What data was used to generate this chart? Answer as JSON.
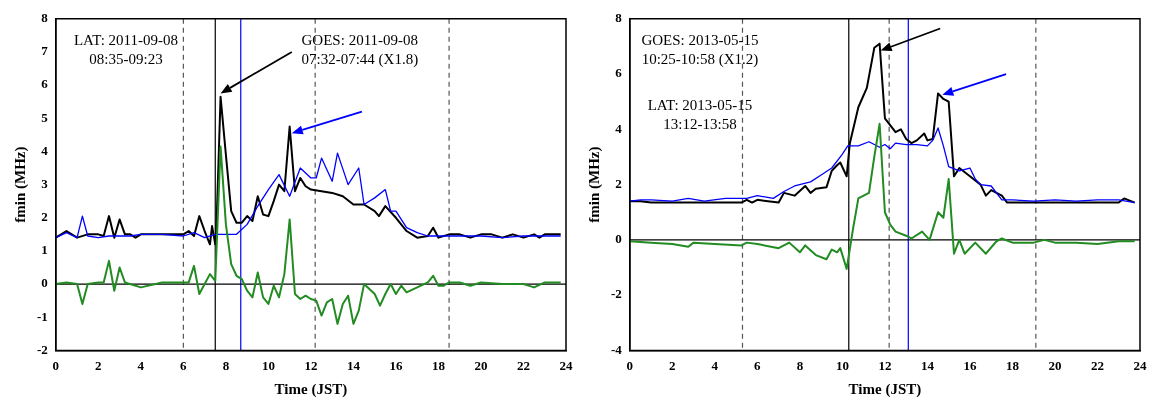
{
  "chart_data": [
    {
      "type": "line",
      "xlabel": "Time (JST)",
      "ylabel": "fmin (MHz)",
      "xlim": [
        0,
        24
      ],
      "xticks": [
        0,
        2,
        4,
        6,
        8,
        10,
        12,
        14,
        16,
        18,
        20,
        22,
        24
      ],
      "ylim": [
        -2,
        8
      ],
      "yticks": [
        -2,
        -1,
        0,
        1,
        2,
        3,
        4,
        5,
        6,
        7,
        8
      ],
      "grid": false,
      "legend": false,
      "marker": "none",
      "line_style": "solid",
      "annotations": [
        "LAT: 2011-09-08\n08:35-09:23",
        "GOES: 2011-09-08\n07:32-07:44 (X1.8)"
      ],
      "ref_lines": [
        {
          "axis": "x",
          "value": 6.0,
          "color": "#555555",
          "line_style": "dashed"
        },
        {
          "axis": "x",
          "value": 12.2,
          "color": "#555555",
          "line_style": "dashed"
        },
        {
          "axis": "x",
          "value": 18.5,
          "color": "#555555",
          "line_style": "dashed"
        },
        {
          "axis": "x",
          "value": 7.5,
          "color": "#000000",
          "line_style": "solid"
        },
        {
          "axis": "x",
          "value": 8.7,
          "color": "#0000ff",
          "line_style": "solid"
        },
        {
          "axis": "y",
          "value": 0,
          "color": "#000000",
          "line_style": "solid"
        }
      ],
      "series": [
        {
          "color": "#000000",
          "x": [
            0,
            0.5,
            1,
            1.5,
            2,
            2.25,
            2.5,
            2.75,
            3,
            3.25,
            3.5,
            3.75,
            4,
            5,
            6,
            6.25,
            6.5,
            6.75,
            7,
            7.25,
            7.35,
            7.5,
            7.55,
            7.75,
            8,
            8.25,
            8.5,
            8.75,
            9,
            9.25,
            9.5,
            9.75,
            10,
            10.25,
            10.5,
            10.75,
            11,
            11.25,
            11.5,
            11.75,
            12,
            12.5,
            13,
            13.5,
            14,
            14.5,
            15,
            15.2,
            15.5,
            16,
            16.5,
            17,
            17.5,
            17.75,
            18,
            18.5,
            19,
            19.5,
            20,
            20.5,
            21,
            21.5,
            22,
            22.5,
            22.75,
            23,
            23.75
          ],
          "values": [
            1.4,
            1.6,
            1.4,
            1.5,
            1.5,
            1.45,
            2.05,
            1.4,
            1.95,
            1.5,
            1.5,
            1.4,
            1.5,
            1.5,
            1.5,
            1.6,
            1.45,
            2.05,
            1.6,
            1.2,
            1.75,
            1.2,
            1.6,
            5.65,
            3.9,
            2.2,
            1.85,
            1.85,
            2.05,
            1.9,
            2.65,
            2.1,
            2.05,
            2.5,
            3.0,
            2.8,
            4.75,
            2.8,
            3.2,
            2.95,
            2.85,
            2.8,
            2.75,
            2.65,
            2.4,
            2.4,
            2.2,
            2.05,
            2.35,
            2.0,
            1.6,
            1.4,
            1.45,
            1.7,
            1.4,
            1.5,
            1.5,
            1.4,
            1.5,
            1.5,
            1.4,
            1.5,
            1.4,
            1.5,
            1.4,
            1.5,
            1.5
          ]
        },
        {
          "color": "#0000ff",
          "x": [
            0,
            0.5,
            1,
            1.25,
            1.5,
            2,
            2.5,
            3,
            3.5,
            4,
            5,
            6,
            6.5,
            7,
            7.5,
            8.5,
            9,
            9.5,
            10,
            10.5,
            11,
            11.5,
            12,
            12.25,
            12.5,
            13,
            13.25,
            13.75,
            14.25,
            14.5,
            15,
            15.5,
            15.75,
            16,
            16.5,
            17,
            17.5,
            18,
            19,
            20,
            21,
            22,
            23,
            23.75
          ],
          "values": [
            1.4,
            1.55,
            1.4,
            2.05,
            1.45,
            1.4,
            1.45,
            1.45,
            1.45,
            1.5,
            1.5,
            1.45,
            1.55,
            1.4,
            1.5,
            1.5,
            1.8,
            2.35,
            2.85,
            3.3,
            2.65,
            3.5,
            3.2,
            3.2,
            3.8,
            3.1,
            3.95,
            3.0,
            3.5,
            2.4,
            2.6,
            2.85,
            2.2,
            2.2,
            1.7,
            1.55,
            1.45,
            1.45,
            1.45,
            1.45,
            1.4,
            1.45,
            1.45,
            1.45
          ]
        },
        {
          "color": "#228b22",
          "x": [
            0,
            0.5,
            1,
            1.25,
            1.5,
            2,
            2.25,
            2.5,
            2.75,
            3,
            3.25,
            4,
            5,
            6,
            6.25,
            6.5,
            6.75,
            7,
            7.25,
            7.5,
            7.75,
            8,
            8.25,
            8.5,
            8.75,
            9,
            9.25,
            9.5,
            9.75,
            10,
            10.25,
            10.5,
            10.75,
            11,
            11.25,
            11.5,
            11.75,
            12,
            12.25,
            12.5,
            12.75,
            13,
            13.25,
            13.5,
            13.75,
            14,
            14.25,
            14.5,
            15,
            15.25,
            15.5,
            15.75,
            16,
            16.25,
            16.5,
            17,
            17.5,
            17.75,
            18,
            18.25,
            18.5,
            19,
            19.5,
            20,
            21,
            22,
            22.5,
            23,
            23.75
          ],
          "values": [
            0,
            0.05,
            0,
            -0.6,
            0,
            0.05,
            0.05,
            0.7,
            -0.2,
            0.5,
            0.05,
            -0.1,
            0.05,
            0.05,
            0.05,
            0.55,
            -0.3,
            0,
            0.3,
            0.1,
            4.15,
            1.8,
            0.6,
            0.25,
            0.15,
            -0.2,
            -0.4,
            0.35,
            -0.4,
            -0.6,
            -0.05,
            -0.4,
            0.3,
            1.95,
            -0.3,
            -0.45,
            -0.35,
            -0.45,
            -0.5,
            -0.95,
            -0.55,
            -0.45,
            -1.2,
            -0.6,
            -0.35,
            -1.2,
            -0.8,
            0,
            -0.3,
            -0.65,
            -0.3,
            0,
            -0.3,
            -0.05,
            -0.25,
            -0.1,
            0.05,
            0.25,
            -0.05,
            -0.05,
            0.05,
            0.05,
            -0.05,
            0.05,
            0,
            0,
            -0.1,
            0.05,
            0.05
          ]
        }
      ]
    },
    {
      "type": "line",
      "xlabel": "Time (JST)",
      "ylabel": "fmin (MHz)",
      "xlim": [
        0,
        24
      ],
      "xticks": [
        0,
        2,
        4,
        6,
        8,
        10,
        12,
        14,
        16,
        18,
        20,
        22,
        24
      ],
      "ylim": [
        -4,
        8
      ],
      "yticks": [
        -4,
        -2,
        0,
        2,
        4,
        6,
        8
      ],
      "grid": false,
      "legend": false,
      "marker": "none",
      "line_style": "solid",
      "annotations": [
        "GOES: 2013-05-15\n10:25-10:58 (X1.2)",
        "LAT: 2013-05-15\n13:12-13:58"
      ],
      "ref_lines": [
        {
          "axis": "x",
          "value": 5.3,
          "color": "#555555",
          "line_style": "dashed"
        },
        {
          "axis": "x",
          "value": 12.2,
          "color": "#555555",
          "line_style": "dashed"
        },
        {
          "axis": "x",
          "value": 19.1,
          "color": "#555555",
          "line_style": "dashed"
        },
        {
          "axis": "x",
          "value": 10.3,
          "color": "#000000",
          "line_style": "solid"
        },
        {
          "axis": "x",
          "value": 13.1,
          "color": "#0000ff",
          "line_style": "solid"
        },
        {
          "axis": "y",
          "value": 0,
          "color": "#000000",
          "line_style": "solid"
        }
      ],
      "series": [
        {
          "color": "#000000",
          "x": [
            0,
            0.5,
            1,
            1.5,
            4,
            5.25,
            5.5,
            5.75,
            6,
            6.5,
            7,
            7.25,
            7.75,
            8.25,
            8.5,
            8.75,
            9.25,
            9.5,
            9.75,
            9.9,
            10.2,
            10.35,
            10.75,
            11.15,
            11.5,
            11.75,
            12,
            12.5,
            12.75,
            13,
            13.25,
            13.5,
            13.85,
            14,
            14.25,
            14.5,
            14.75,
            15,
            15.25,
            15.5,
            16,
            16.5,
            16.75,
            17,
            17.5,
            17.75,
            23,
            23.25,
            23.75
          ],
          "values": [
            1.4,
            1.4,
            1.35,
            1.35,
            1.35,
            1.35,
            1.45,
            1.35,
            1.45,
            1.4,
            1.35,
            1.7,
            1.6,
            1.95,
            1.7,
            1.85,
            1.9,
            2.5,
            2.7,
            2.8,
            2.3,
            3.5,
            4.8,
            5.5,
            6.95,
            7.1,
            4.4,
            3.9,
            4.0,
            3.65,
            3.5,
            3.6,
            3.85,
            3.6,
            3.65,
            5.3,
            5.1,
            5.0,
            2.3,
            2.6,
            2.3,
            2.0,
            1.6,
            1.8,
            1.6,
            1.35,
            1.35,
            1.5,
            1.35
          ]
        },
        {
          "color": "#0000ff",
          "x": [
            0,
            0.5,
            1,
            2,
            2.75,
            3.5,
            4.5,
            5.5,
            6,
            6.75,
            7.25,
            7.75,
            8.5,
            9,
            9.5,
            10,
            10.25,
            10.75,
            11.25,
            11.75,
            12,
            12.25,
            12.5,
            13,
            13.5,
            14,
            14.25,
            14.5,
            14.75,
            15,
            15.5,
            16,
            16.25,
            16.5,
            17,
            17.5,
            18,
            19,
            20,
            21,
            22,
            23,
            23.75
          ],
          "values": [
            1.4,
            1.45,
            1.45,
            1.4,
            1.5,
            1.4,
            1.5,
            1.5,
            1.6,
            1.5,
            1.75,
            1.95,
            2.1,
            2.35,
            2.6,
            3.1,
            3.4,
            3.4,
            3.55,
            3.35,
            3.45,
            3.3,
            3.5,
            3.45,
            3.45,
            3.4,
            3.6,
            4.05,
            3.4,
            2.65,
            2.5,
            2.6,
            2.2,
            2.0,
            1.95,
            1.45,
            1.45,
            1.4,
            1.45,
            1.4,
            1.45,
            1.45,
            1.35
          ]
        },
        {
          "color": "#228b22",
          "x": [
            0,
            1,
            2,
            2.75,
            3,
            4,
            5.25,
            5.5,
            6,
            7,
            7.5,
            8,
            8.25,
            8.75,
            9.25,
            9.5,
            9.75,
            9.9,
            10.2,
            10.5,
            10.75,
            11.25,
            11.5,
            11.75,
            12,
            12.25,
            12.5,
            13,
            13.25,
            13.75,
            14.1,
            14.5,
            14.75,
            15,
            15.25,
            15.5,
            15.75,
            16.25,
            16.75,
            17.25,
            17.5,
            18,
            19,
            19.5,
            20,
            21,
            22,
            23,
            23.75
          ],
          "values": [
            -0.05,
            -0.1,
            -0.15,
            -0.25,
            -0.1,
            -0.15,
            -0.2,
            -0.1,
            -0.15,
            -0.3,
            -0.1,
            -0.45,
            -0.2,
            -0.55,
            -0.7,
            -0.35,
            -0.45,
            -0.3,
            -1.05,
            0.4,
            1.5,
            1.7,
            3.0,
            4.2,
            1.0,
            0.55,
            0.3,
            0.15,
            0.05,
            0.3,
            0,
            1.0,
            0.8,
            2.2,
            -0.5,
            0,
            -0.5,
            -0.1,
            -0.5,
            -0.05,
            0.05,
            -0.1,
            -0.1,
            0,
            -0.1,
            -0.1,
            -0.15,
            -0.05,
            -0.05
          ]
        }
      ]
    }
  ]
}
